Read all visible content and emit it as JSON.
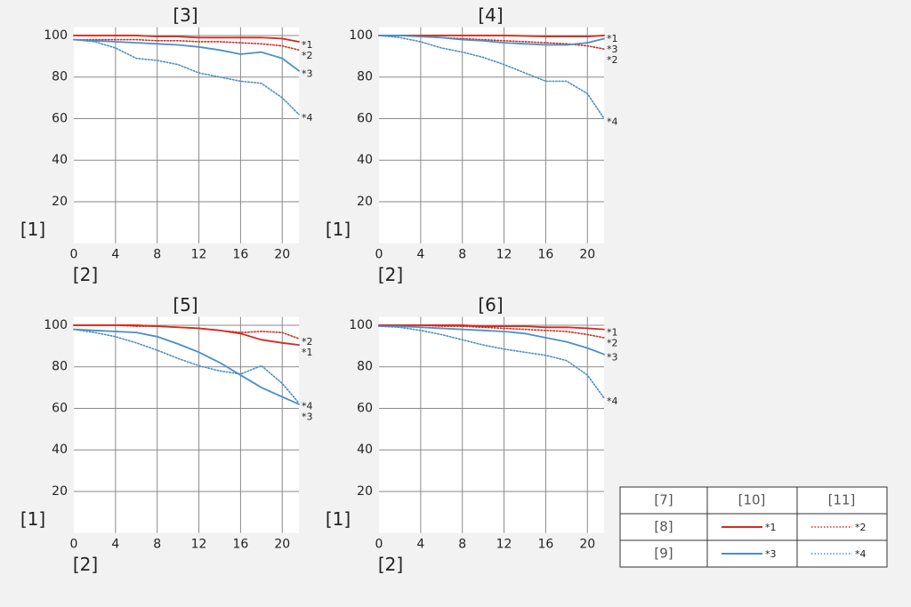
{
  "chart_data": [
    {
      "type": "line",
      "title": "[3]",
      "xlabel": "[2]",
      "ylabel": "[1]",
      "x": [
        0,
        2,
        4,
        6,
        8,
        10,
        12,
        14,
        16,
        18,
        20,
        21.6
      ],
      "xlim": [
        0,
        21.6
      ],
      "ylim": [
        0,
        104
      ],
      "xticks": [
        0,
        4,
        8,
        12,
        16,
        20
      ],
      "yticks": [
        20,
        40,
        60,
        80,
        100
      ],
      "grid": true,
      "series": [
        {
          "name": "*1",
          "color": "#d52b1e",
          "style": "solid",
          "values": [
            100,
            100,
            100,
            100,
            99.5,
            99.5,
            99,
            99,
            99,
            99,
            98.5,
            97
          ]
        },
        {
          "name": "*2",
          "color": "#d52b1e",
          "style": "dotted",
          "values": [
            98,
            98,
            98,
            98,
            97.5,
            97.5,
            97,
            97,
            96.5,
            96,
            95,
            93
          ]
        },
        {
          "name": "*3",
          "color": "#4a8fc9",
          "style": "solid",
          "values": [
            98,
            97.5,
            97,
            96.5,
            96,
            95.5,
            94.5,
            93,
            91,
            92,
            89,
            83
          ]
        },
        {
          "name": "*4",
          "color": "#4a8fc9",
          "style": "dotted",
          "values": [
            98,
            97,
            94,
            89,
            88,
            86,
            82,
            80,
            78,
            77,
            70,
            62
          ]
        }
      ]
    },
    {
      "type": "line",
      "title": "[4]",
      "xlabel": "[2]",
      "ylabel": "[1]",
      "x": [
        0,
        2,
        4,
        6,
        8,
        10,
        12,
        14,
        16,
        18,
        20,
        21.6
      ],
      "xlim": [
        0,
        21.6
      ],
      "ylim": [
        0,
        104
      ],
      "xticks": [
        0,
        4,
        8,
        12,
        16,
        20
      ],
      "yticks": [
        20,
        40,
        60,
        80,
        100
      ],
      "grid": true,
      "series": [
        {
          "name": "*1",
          "color": "#d52b1e",
          "style": "solid",
          "values": [
            100,
            100,
            100,
            100,
            100,
            100,
            100,
            99.8,
            99.5,
            99.5,
            99.5,
            100
          ]
        },
        {
          "name": "*2",
          "color": "#d52b1e",
          "style": "dotted",
          "values": [
            100,
            100,
            99.5,
            99,
            98.5,
            98,
            97.5,
            97,
            96.5,
            96,
            95,
            93.5
          ]
        },
        {
          "name": "*3",
          "color": "#4a8fc9",
          "style": "solid",
          "values": [
            100,
            100,
            99.5,
            99,
            98,
            97.5,
            96.5,
            96,
            95.5,
            95.5,
            96.5,
            98.5
          ]
        },
        {
          "name": "*4",
          "color": "#4a8fc9",
          "style": "dotted",
          "values": [
            100,
            99,
            97,
            94,
            92,
            89.5,
            86,
            82,
            78,
            78,
            72,
            60
          ]
        }
      ]
    },
    {
      "type": "line",
      "title": "[5]",
      "xlabel": "[2]",
      "ylabel": "[1]",
      "x": [
        0,
        2,
        4,
        6,
        8,
        10,
        12,
        14,
        16,
        18,
        20,
        21.6
      ],
      "xlim": [
        0,
        21.6
      ],
      "ylim": [
        0,
        104
      ],
      "xticks": [
        0,
        4,
        8,
        12,
        16,
        20
      ],
      "yticks": [
        20,
        40,
        60,
        80,
        100
      ],
      "grid": true,
      "series": [
        {
          "name": "*1",
          "color": "#d52b1e",
          "style": "solid",
          "values": [
            100,
            100,
            100,
            100,
            99.5,
            99,
            98.5,
            97.5,
            96,
            93,
            91.5,
            90.5
          ]
        },
        {
          "name": "*2",
          "color": "#d52b1e",
          "style": "dotted",
          "values": [
            100,
            100,
            100,
            99.5,
            99.5,
            99,
            98.5,
            97.5,
            96.5,
            97,
            96.5,
            93.5
          ]
        },
        {
          "name": "*3",
          "color": "#4a8fc9",
          "style": "solid",
          "values": [
            98,
            97.5,
            97,
            96.5,
            94.5,
            91,
            87,
            82,
            76,
            70,
            65.5,
            62
          ]
        },
        {
          "name": "*4",
          "color": "#4a8fc9",
          "style": "dotted",
          "values": [
            98,
            96.5,
            94.5,
            91.5,
            88,
            84,
            80.5,
            78,
            76.5,
            80.5,
            72,
            62.5
          ]
        }
      ]
    },
    {
      "type": "line",
      "title": "[6]",
      "xlabel": "[2]",
      "ylabel": "[1]",
      "x": [
        0,
        2,
        4,
        6,
        8,
        10,
        12,
        14,
        16,
        18,
        20,
        21.6
      ],
      "xlim": [
        0,
        21.6
      ],
      "ylim": [
        0,
        104
      ],
      "xticks": [
        0,
        4,
        8,
        12,
        16,
        20
      ],
      "yticks": [
        20,
        40,
        60,
        80,
        100
      ],
      "grid": true,
      "series": [
        {
          "name": "*1",
          "color": "#d52b1e",
          "style": "solid",
          "values": [
            100,
            100,
            100,
            100,
            100,
            99.5,
            99.5,
            99.5,
            99,
            99,
            98.5,
            98
          ]
        },
        {
          "name": "*2",
          "color": "#d52b1e",
          "style": "dotted",
          "values": [
            100,
            100,
            100,
            99.5,
            99.5,
            99,
            98.5,
            98,
            97.5,
            97,
            95.5,
            94
          ]
        },
        {
          "name": "*3",
          "color": "#4a8fc9",
          "style": "solid",
          "values": [
            99.5,
            99.5,
            99,
            98.5,
            98,
            97.5,
            97,
            96,
            94,
            92,
            89,
            86
          ]
        },
        {
          "name": "*4",
          "color": "#4a8fc9",
          "style": "dotted",
          "values": [
            99.5,
            99,
            97.5,
            95.5,
            93,
            90.5,
            88.5,
            87,
            85.5,
            83,
            76,
            65
          ]
        }
      ]
    }
  ],
  "legend_table": {
    "header": [
      "[7]",
      "[10]",
      "[11]"
    ],
    "rows": [
      [
        "[8]",
        "*1",
        "*2"
      ],
      [
        "[9]",
        "*3",
        "*4"
      ]
    ]
  }
}
